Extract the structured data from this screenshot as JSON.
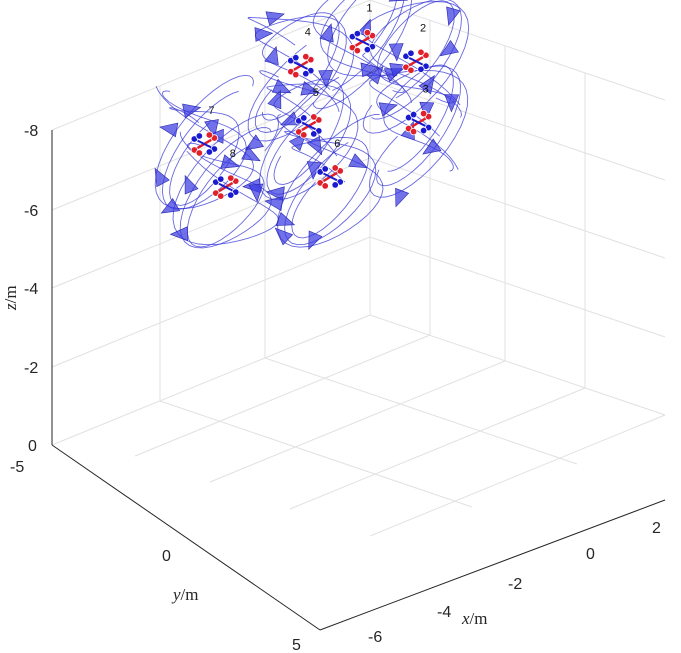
{
  "chart_data": {
    "type": "3d-trajectory",
    "title": "",
    "xlabel": "x",
    "xlabel_unit": "/m",
    "ylabel": "y",
    "ylabel_unit": "/m",
    "zlabel": "z",
    "zlabel_unit": "/m",
    "xlim": [
      -6.5,
      3
    ],
    "ylim": [
      -5,
      5
    ],
    "zlim": [
      0,
      -8
    ],
    "x_ticks": [
      "-6",
      "-4",
      "-2",
      "0",
      "2"
    ],
    "y_ticks": [
      "-5",
      "0",
      "5"
    ],
    "z_ticks": [
      "-8",
      "-6",
      "-4",
      "-2",
      "0"
    ],
    "grid": true,
    "uavs": [
      {
        "id": "1",
        "x": -2.0,
        "y": -3.0,
        "z": -6.2
      },
      {
        "id": "2",
        "x": 0.5,
        "y": -1.5,
        "z": -5.6
      },
      {
        "id": "3",
        "x": 2.0,
        "y": 0.5,
        "z": -4.5
      },
      {
        "id": "4",
        "x": -4.0,
        "y": -3.5,
        "z": -6.0
      },
      {
        "id": "5",
        "x": -2.0,
        "y": -1.0,
        "z": -5.0
      },
      {
        "id": "6",
        "x": 0.0,
        "y": 1.0,
        "z": -4.0
      },
      {
        "id": "7",
        "x": -5.5,
        "y": -2.0,
        "z": -5.2
      },
      {
        "id": "8",
        "x": -3.5,
        "y": 0.0,
        "z": -4.4
      }
    ]
  }
}
